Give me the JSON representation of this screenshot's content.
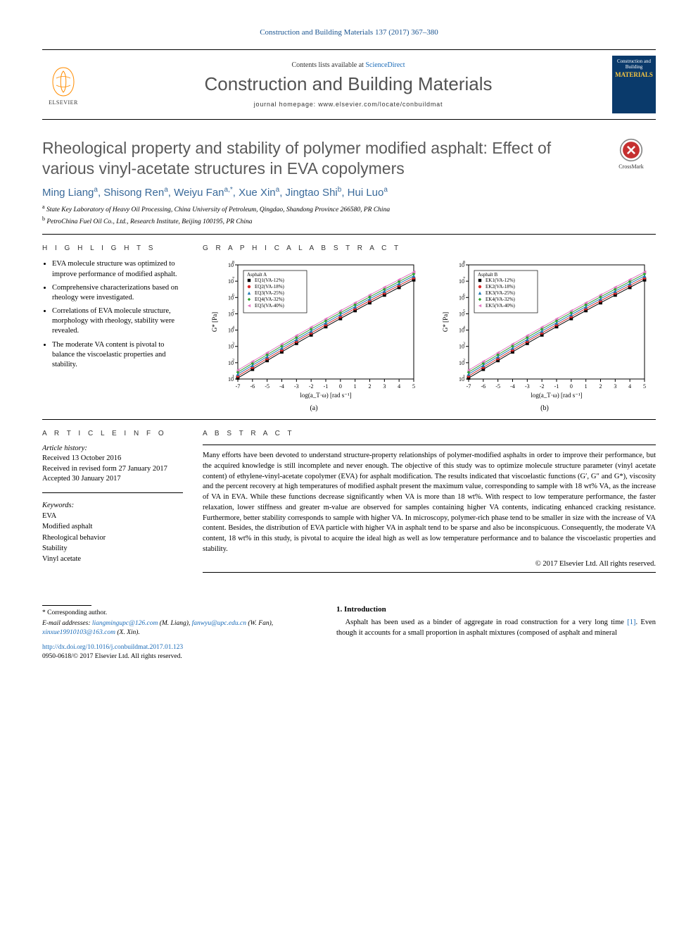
{
  "running_head": "Construction and Building Materials 137 (2017) 367–380",
  "masthead": {
    "contents_prefix": "Contents lists available at ",
    "sciencedirect": "ScienceDirect",
    "journal": "Construction and Building Materials",
    "homepage_prefix": "journal homepage: ",
    "homepage": "www.elsevier.com/locate/conbuildmat",
    "publisher": "ELSEVIER",
    "cover_line1": "Construction and Building",
    "cover_line2": "MATERIALS"
  },
  "crossmark_label": "CrossMark",
  "title": "Rheological property and stability of polymer modified asphalt: Effect of various vinyl-acetate structures in EVA copolymers",
  "authors_html": "Ming Liang<sup>a</sup>, Shisong Ren<sup>a</sup>, Weiyu Fan<sup>a,*</sup>, Xue Xin<sup>a</sup>, Jingtao Shi<sup>b</sup>, Hui Luo<sup>a</sup>",
  "affiliations": [
    {
      "sup": "a",
      "text": "State Key Laboratory of Heavy Oil Processing, China University of Petroleum, Qingdao, Shandong Province 266580, PR China"
    },
    {
      "sup": "b",
      "text": "PetroChina Fuel Oil Co., Ltd., Research Institute, Beijing 100195, PR China"
    }
  ],
  "highlights_label": "H I G H L I G H T S",
  "highlights": [
    "EVA molecule structure was optimized to improve performance of modified asphalt.",
    "Comprehensive characterizations based on rheology were investigated.",
    "Correlations of EVA molecule structure, morphology with rheology, stability were revealed.",
    "The moderate VA content is pivotal to balance the viscoelastic properties and stability."
  ],
  "graphical_label": "G R A P H I C A L  A B S T R A C T",
  "article_info_label": "A R T I C L E  I N F O",
  "abstract_label": "A B S T R A C T",
  "history": {
    "label": "Article history:",
    "received": "Received 13 October 2016",
    "revised": "Received in revised form 27 January 2017",
    "accepted": "Accepted 30 January 2017"
  },
  "keywords_label": "Keywords:",
  "keywords": [
    "EVA",
    "Modified asphalt",
    "Rheological behavior",
    "Stability",
    "Vinyl acetate"
  ],
  "abstract": "Many efforts have been devoted to understand structure-property relationships of polymer-modified asphalts in order to improve their performance, but the acquired knowledge is still incomplete and never enough. The objective of this study was to optimize molecule structure parameter (vinyl acetate content) of ethylene-vinyl-acetate copolymer (EVA) for asphalt modification. The results indicated that viscoelastic functions (G′, G″ and G*), viscosity and the percent recovery at high temperatures of modified asphalt present the maximum value, corresponding to sample with 18 wt% VA, as the increase of VA in EVA. While these functions decrease significantly when VA is more than 18 wt%. With respect to low temperature performance, the faster relaxation, lower stiffness and greater m-value are observed for samples containing higher VA contents, indicating enhanced cracking resistance. Furthermore, better stability corresponds to sample with higher VA. In microscopy, polymer-rich phase tend to be smaller in size with the increase of VA content. Besides, the distribution of EVA particle with higher VA in asphalt tend to be sparse and also be inconspicuous. Consequently, the moderate VA content, 18 wt% in this study, is pivotal to acquire the ideal high as well as low temperature performance and to balance the viscoelastic properties and stability.",
  "copyright": "© 2017 Elsevier Ltd. All rights reserved.",
  "charts": {
    "a": {
      "title": "Asphalt A",
      "legend": [
        "EQ1(VA-12%)",
        "EQ2(VA-18%)",
        "EQ3(VA-25%)",
        "EQ4(VA-32%)",
        "EQ5(VA-40%)"
      ],
      "colors": [
        "#000000",
        "#d62728",
        "#1f77b4",
        "#2ca02c",
        "#e377c2"
      ],
      "markers": [
        "square",
        "circle",
        "triangle",
        "diamond",
        "triangle-left"
      ],
      "xlabel": "log(a_T·ω) [rad s⁻¹]",
      "ylabel": "G* [Pa]",
      "xlim": [
        -7,
        5
      ],
      "xticks": [
        -7,
        -6,
        -5,
        -4,
        -3,
        -2,
        -1,
        0,
        1,
        2,
        3,
        4,
        5
      ],
      "ylim_exp": [
        1,
        8
      ],
      "yticks_exp": [
        1,
        2,
        3,
        4,
        5,
        6,
        7,
        8
      ],
      "sublabel": "(a)"
    },
    "b": {
      "title": "Asphalt B",
      "legend": [
        "EK1(VA-12%)",
        "EK2(VA-18%)",
        "EK3(VA-25%)",
        "EK4(VA-32%)",
        "EK5(VA-40%)"
      ],
      "colors": [
        "#000000",
        "#d62728",
        "#1f77b4",
        "#2ca02c",
        "#e377c2"
      ],
      "markers": [
        "square",
        "circle",
        "triangle",
        "diamond",
        "triangle-left"
      ],
      "xlabel": "log(a_T·ω) [rad s⁻¹]",
      "ylabel": "G* [Pa]",
      "xlim": [
        -7,
        5
      ],
      "xticks": [
        -7,
        -6,
        -5,
        -4,
        -3,
        -2,
        -1,
        0,
        1,
        2,
        3,
        4,
        5
      ],
      "ylim_exp": [
        1,
        8
      ],
      "yticks_exp": [
        1,
        2,
        3,
        4,
        5,
        6,
        7,
        8
      ],
      "sublabel": "(b)"
    },
    "style": {
      "bg": "#ffffff",
      "axis_color": "#000000",
      "tick_fontsize": 8,
      "label_fontsize": 9,
      "legend_fontsize": 7,
      "line_width": 1.0,
      "marker_size": 2.4
    }
  },
  "intro": {
    "heading": "1. Introduction",
    "p1_before_ref": "Asphalt has been used as a binder of aggregate in road construction for a very long time ",
    "ref": "[1]",
    "p1_after_ref": ". Even though it accounts for a small proportion in asphalt mixtures (composed of asphalt and mineral"
  },
  "footnote": {
    "corr": "* Corresponding author.",
    "emails_label": "E-mail addresses: ",
    "emails": [
      {
        "addr": "liangmingupc@126.com",
        "by": "(M. Liang)"
      },
      {
        "addr": "fanwyu@upc.edu.cn",
        "by": "(W. Fan)"
      },
      {
        "addr": "xinxue19910103@163.com",
        "by": "(X. Xin)"
      }
    ],
    "doi": "http://dx.doi.org/10.1016/j.conbuildmat.2017.01.123",
    "issn_line": "0950-0618/© 2017 Elsevier Ltd. All rights reserved."
  }
}
